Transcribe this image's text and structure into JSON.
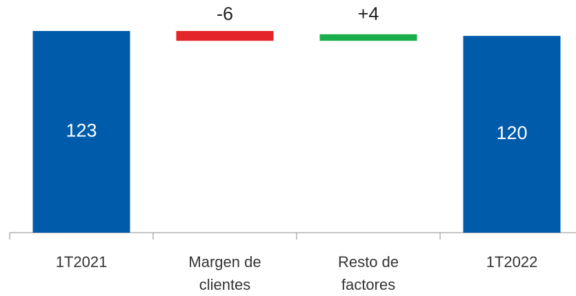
{
  "chart_data": {
    "type": "waterfall",
    "categories": [
      "1T2021",
      "Margen de clientes",
      "Resto de factores",
      "1T2022"
    ],
    "values": [
      123,
      -6,
      4,
      120
    ],
    "value_labels": [
      "123",
      "-6",
      "+4",
      "120"
    ],
    "measures": [
      "absolute",
      "relative",
      "relative",
      "absolute"
    ],
    "colors": [
      "#005bab",
      "#e3262a",
      "#1aad4b",
      "#005bab"
    ],
    "ylim": [
      0,
      123
    ]
  }
}
